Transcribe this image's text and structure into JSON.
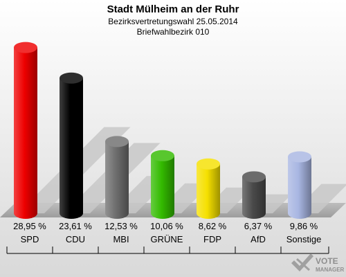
{
  "chart_data": {
    "type": "bar",
    "title": "Stadt Mülheim an der Ruhr",
    "subtitle": "Bezirksvertretungswahl 25.05.2014",
    "subtitle2": "Briefwahlbezirk 010",
    "categories": [
      "SPD",
      "CDU",
      "MBI",
      "GRÜNE",
      "FDP",
      "AfD",
      "Sonstige"
    ],
    "values": [
      28.95,
      23.61,
      12.53,
      10.06,
      8.62,
      6.37,
      9.86
    ],
    "value_labels": [
      "28,95 %",
      "23,61 %",
      "12,53 %",
      "10,06 %",
      "8,62 %",
      "6,37 %",
      "9,86 %"
    ],
    "colors": [
      "#ee0000",
      "#000000",
      "#6e6e6e",
      "#33bb00",
      "#f5e000",
      "#4a4a4a",
      "#a8b6e2"
    ],
    "ylim": [
      0,
      30
    ],
    "grid": false,
    "legend": "none"
  },
  "watermark": {
    "line1": "VOTE",
    "line2": "MANAGER",
    "icon": "vote-manager-logo-icon"
  }
}
